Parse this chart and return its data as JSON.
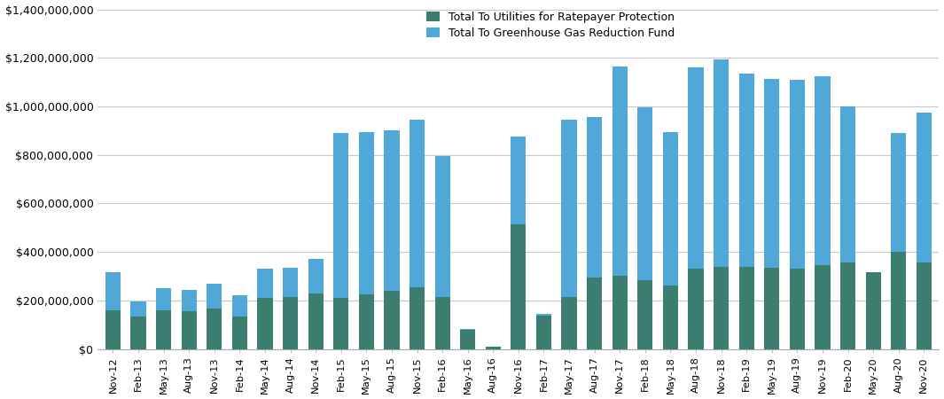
{
  "labels": [
    "Nov-12",
    "Feb-13",
    "May-13",
    "Aug-13",
    "Nov-13",
    "Feb-14",
    "May-14",
    "Aug-14",
    "Nov-14",
    "Feb-15",
    "May-15",
    "Aug-15",
    "Nov-15",
    "Feb-16",
    "May-16",
    "Aug-16",
    "Nov-16",
    "Feb-17",
    "May-17",
    "Aug-17",
    "Nov-17",
    "Feb-18",
    "May-18",
    "Aug-18",
    "Nov-18",
    "Feb-19",
    "May-19",
    "Aug-19",
    "Nov-19",
    "Feb-20",
    "May-20",
    "Aug-20",
    "Nov-20"
  ],
  "utilities": [
    160000000,
    135000000,
    160000000,
    155000000,
    165000000,
    135000000,
    210000000,
    215000000,
    230000000,
    210000000,
    225000000,
    240000000,
    255000000,
    215000000,
    79000000,
    8000000,
    512000000,
    137000000,
    215000000,
    295000000,
    300000000,
    285000000,
    260000000,
    330000000,
    340000000,
    340000000,
    335000000,
    330000000,
    345000000,
    355000000,
    315000000,
    400000000,
    355000000
  ],
  "ggrf": [
    155000000,
    60000000,
    90000000,
    90000000,
    105000000,
    85000000,
    120000000,
    120000000,
    140000000,
    680000000,
    670000000,
    660000000,
    690000000,
    580000000,
    5000000,
    3000000,
    365000000,
    8000000,
    730000000,
    660000000,
    865000000,
    710000000,
    635000000,
    830000000,
    855000000,
    795000000,
    780000000,
    780000000,
    780000000,
    645000000,
    3000000,
    490000000,
    620000000
  ],
  "utilities_color": "#3b7d6e",
  "ggrf_color": "#4fa8d8",
  "legend_utilities": "Total To Utilities for Ratepayer Protection",
  "legend_ggrf": "Total To Greenhouse Gas Reduction Fund",
  "ylim": [
    0,
    1400000000
  ],
  "yticks": [
    0,
    200000000,
    400000000,
    600000000,
    800000000,
    1000000000,
    1200000000,
    1400000000
  ],
  "background_color": "#ffffff",
  "grid_color": "#c8c8c8"
}
